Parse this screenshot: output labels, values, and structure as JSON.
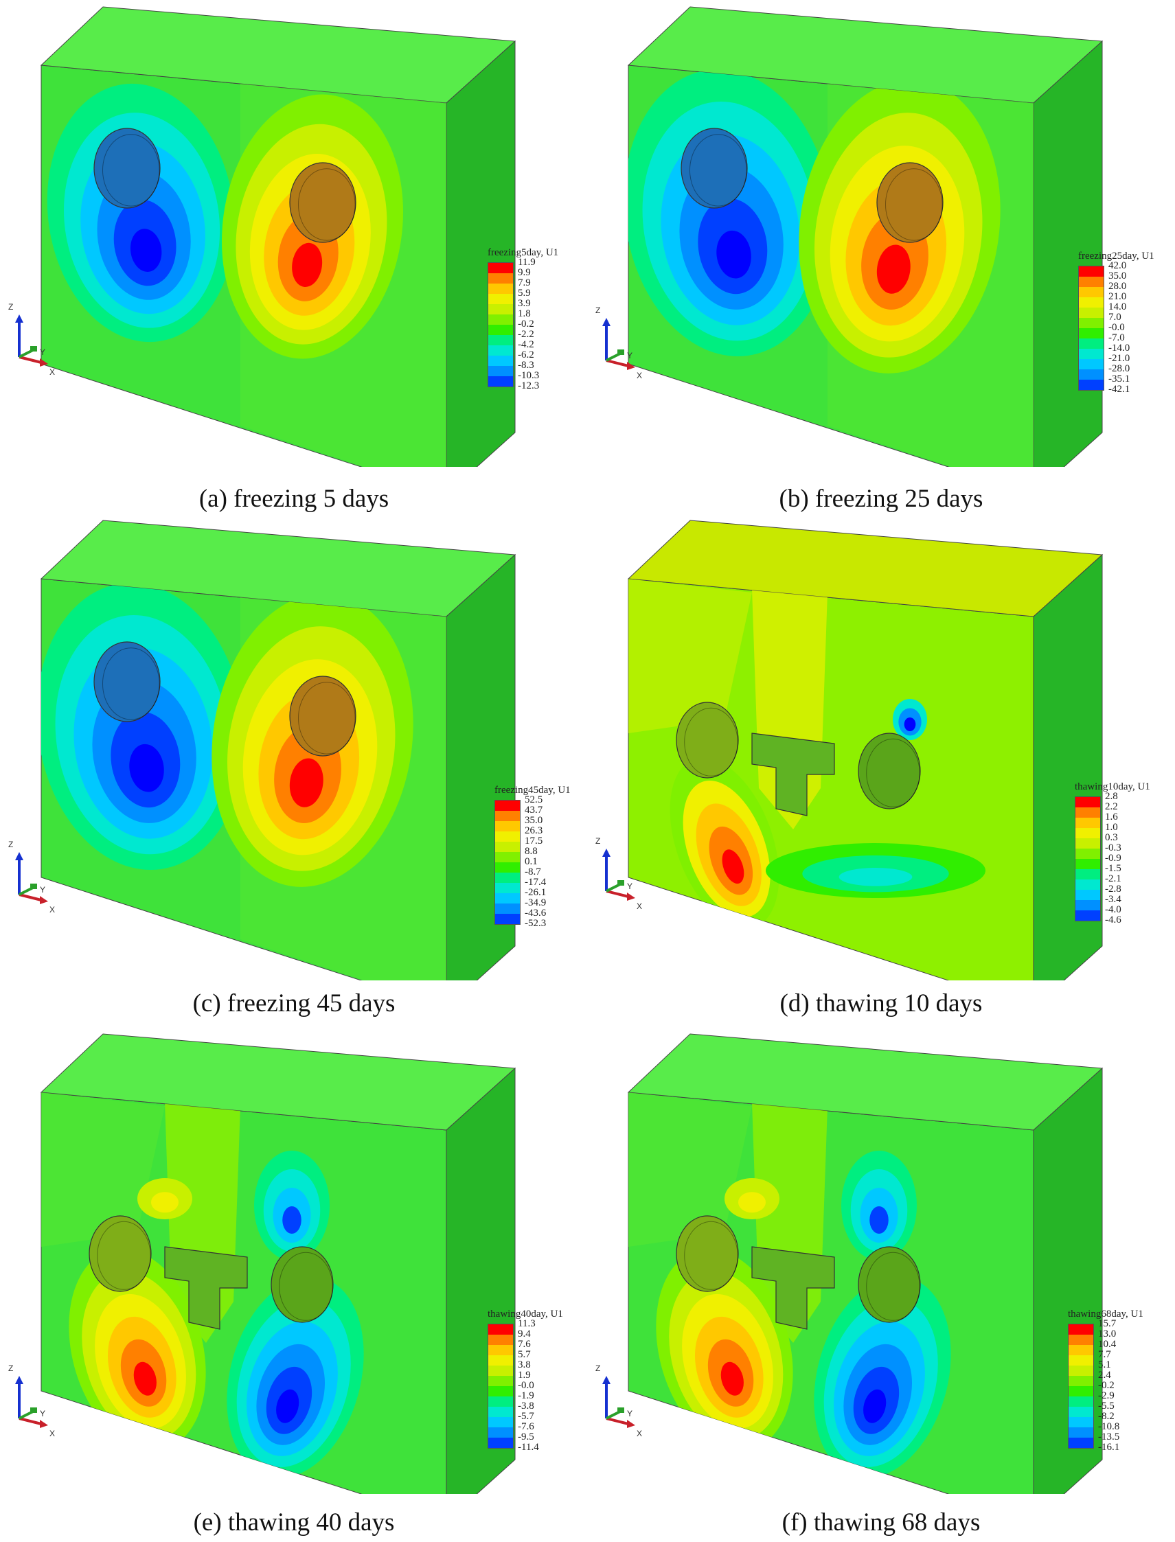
{
  "colors": {
    "ramp": [
      "#0000ff",
      "#0040ff",
      "#0090ff",
      "#00c8ff",
      "#00e8d0",
      "#00ee80",
      "#30ee00",
      "#80f000",
      "#c8f000",
      "#f0f000",
      "#ffc800",
      "#ff8000",
      "#ff0000"
    ],
    "block_face": "#3fe23a",
    "block_top": "#58ec4a",
    "block_side": "#26b527"
  },
  "panels": [
    {
      "caption": "(a) freezing 5 days",
      "legend_title": "freezing5day, U1",
      "ticks": [
        "11.9",
        "9.9",
        "7.9",
        "5.9",
        "3.9",
        "1.8",
        "-0.2",
        "-2.2",
        "-4.2",
        "-6.2",
        "-8.3",
        "-10.3",
        "-12.3"
      ],
      "stage": "freezing"
    },
    {
      "caption": "(b) freezing 25 days",
      "legend_title": "freezing25day, U1",
      "ticks": [
        "42.0",
        "35.0",
        "28.0",
        "21.0",
        "14.0",
        "7.0",
        "-0.0",
        "-7.0",
        "-14.0",
        "-21.0",
        "-28.0",
        "-35.1",
        "-42.1"
      ],
      "stage": "freezing"
    },
    {
      "caption": "(c) freezing 45 days",
      "legend_title": "freezing45day, U1",
      "ticks": [
        "52.5",
        "43.7",
        "35.0",
        "26.3",
        "17.5",
        "8.8",
        "0.1",
        "-8.7",
        "-17.4",
        "-26.1",
        "-34.9",
        "-43.6",
        "-52.3"
      ],
      "stage": "freezing"
    },
    {
      "caption": "(d) thawing 10 days",
      "legend_title": "thawing10day, U1",
      "ticks": [
        "2.8",
        "2.2",
        "1.6",
        "1.0",
        "0.3",
        "-0.3",
        "-0.9",
        "-1.5",
        "-2.1",
        "-2.8",
        "-3.4",
        "-4.0",
        "-4.6"
      ],
      "stage": "thawing"
    },
    {
      "caption": "(e) thawing 40 days",
      "legend_title": "thawing40day, U1",
      "ticks": [
        "11.3",
        "9.4",
        "7.6",
        "5.7",
        "3.8",
        "1.9",
        "-0.0",
        "-1.9",
        "-3.8",
        "-5.7",
        "-7.6",
        "-9.5",
        "-11.4"
      ],
      "stage": "thawing"
    },
    {
      "caption": "(f) thawing 68 days",
      "legend_title": "thawing68day, U1",
      "ticks": [
        "15.7",
        "13.0",
        "10.4",
        "7.7",
        "5.1",
        "2.4",
        "-0.2",
        "-2.9",
        "-5.5",
        "-8.2",
        "-10.8",
        "-13.5",
        "-16.1"
      ],
      "stage": "thawing"
    }
  ],
  "axes": {
    "z": "Z",
    "y": "Y",
    "x": "X"
  }
}
